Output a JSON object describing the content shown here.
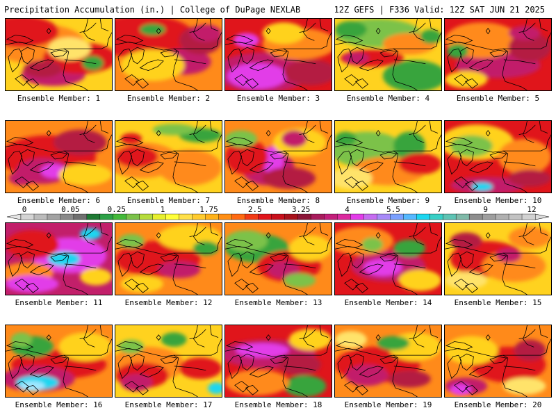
{
  "header": {
    "title_left": "Precipitation Accumulation (in.) | College of DuPage NEXLAB",
    "title_right": "12Z GEFS | F336 Valid: 12Z SAT JUN 21 2025"
  },
  "panels": [
    {
      "label": "Ensemble Member: 1",
      "base": "#ffd21f",
      "blobs": [
        [
          "#ff8a1a",
          0.3,
          0.35,
          0.45,
          0.28
        ],
        [
          "#e0151b",
          0.15,
          0.18,
          0.35,
          0.22
        ],
        [
          "#c21f6a",
          0.45,
          0.78,
          0.3,
          0.16
        ],
        [
          "#e0151b",
          0.7,
          0.55,
          0.35,
          0.22
        ],
        [
          "#39a43c",
          0.82,
          0.62,
          0.1,
          0.1
        ],
        [
          "#ffe36b",
          0.6,
          0.42,
          0.2,
          0.16
        ],
        [
          "#b41a42",
          0.35,
          0.7,
          0.18,
          0.12
        ]
      ]
    },
    {
      "label": "Ensemble Member: 2",
      "base": "#ff8a1a",
      "blobs": [
        [
          "#e0151b",
          0.25,
          0.25,
          0.5,
          0.3
        ],
        [
          "#c21f6a",
          0.65,
          0.6,
          0.25,
          0.18
        ],
        [
          "#b41a42",
          0.8,
          0.3,
          0.2,
          0.2
        ],
        [
          "#ffd21f",
          0.35,
          0.65,
          0.3,
          0.22
        ],
        [
          "#39a43c",
          0.35,
          0.15,
          0.12,
          0.08
        ],
        [
          "#c21f6a",
          0.85,
          0.2,
          0.15,
          0.12
        ]
      ]
    },
    {
      "label": "Ensemble Member: 3",
      "base": "#e0151b",
      "blobs": [
        [
          "#c21f6a",
          0.35,
          0.75,
          0.45,
          0.28
        ],
        [
          "#e23ce8",
          0.3,
          0.8,
          0.28,
          0.18
        ],
        [
          "#ff8a1a",
          0.7,
          0.35,
          0.35,
          0.22
        ],
        [
          "#b41a42",
          0.8,
          0.75,
          0.25,
          0.18
        ],
        [
          "#ffd21f",
          0.55,
          0.2,
          0.2,
          0.15
        ],
        [
          "#e23ce8",
          0.2,
          0.3,
          0.12,
          0.1
        ]
      ]
    },
    {
      "label": "Ensemble Member: 4",
      "base": "#ffd21f",
      "blobs": [
        [
          "#39a43c",
          0.75,
          0.8,
          0.3,
          0.22
        ],
        [
          "#7bc24a",
          0.4,
          0.2,
          0.4,
          0.2
        ],
        [
          "#39a43c",
          0.15,
          0.15,
          0.15,
          0.12
        ],
        [
          "#e0151b",
          0.35,
          0.55,
          0.3,
          0.12
        ],
        [
          "#ff8a1a",
          0.7,
          0.35,
          0.25,
          0.15
        ],
        [
          "#c21f6a",
          0.2,
          0.55,
          0.12,
          0.08
        ],
        [
          "#39a43c",
          0.9,
          0.25,
          0.1,
          0.1
        ]
      ]
    },
    {
      "label": "Ensemble Member: 5",
      "base": "#e0151b",
      "blobs": [
        [
          "#c21f6a",
          0.5,
          0.65,
          0.4,
          0.18
        ],
        [
          "#ff8a1a",
          0.35,
          0.3,
          0.35,
          0.25
        ],
        [
          "#b41a42",
          0.8,
          0.4,
          0.2,
          0.2
        ],
        [
          "#ffd21f",
          0.2,
          0.85,
          0.2,
          0.12
        ],
        [
          "#39a43c",
          0.12,
          0.45,
          0.1,
          0.1
        ],
        [
          "#c21f6a",
          0.75,
          0.2,
          0.15,
          0.1
        ]
      ]
    },
    {
      "label": "Ensemble Member: 6",
      "base": "#ff8a1a",
      "blobs": [
        [
          "#e0151b",
          0.4,
          0.5,
          0.45,
          0.3
        ],
        [
          "#c21f6a",
          0.35,
          0.7,
          0.25,
          0.18
        ],
        [
          "#e23ce8",
          0.45,
          0.7,
          0.12,
          0.1
        ],
        [
          "#b41a42",
          0.7,
          0.3,
          0.25,
          0.18
        ],
        [
          "#ffd21f",
          0.75,
          0.75,
          0.25,
          0.15
        ],
        [
          "#c21f6a",
          0.15,
          0.8,
          0.12,
          0.1
        ]
      ]
    },
    {
      "label": "Ensemble Member: 7",
      "base": "#ffd21f",
      "blobs": [
        [
          "#ff8a1a",
          0.25,
          0.55,
          0.35,
          0.25
        ],
        [
          "#e0151b",
          0.2,
          0.5,
          0.2,
          0.15
        ],
        [
          "#ff8a1a",
          0.7,
          0.65,
          0.3,
          0.25
        ],
        [
          "#39a43c",
          0.8,
          0.2,
          0.2,
          0.1
        ],
        [
          "#7bc24a",
          0.55,
          0.12,
          0.2,
          0.08
        ],
        [
          "#e0151b",
          0.15,
          0.25,
          0.1,
          0.08
        ]
      ]
    },
    {
      "label": "Ensemble Member: 8",
      "base": "#ff8a1a",
      "blobs": [
        [
          "#c21f6a",
          0.4,
          0.65,
          0.25,
          0.25
        ],
        [
          "#e23ce8",
          0.45,
          0.55,
          0.1,
          0.2
        ],
        [
          "#e0151b",
          0.2,
          0.5,
          0.2,
          0.25
        ],
        [
          "#7bc24a",
          0.15,
          0.25,
          0.15,
          0.12
        ],
        [
          "#ffd21f",
          0.7,
          0.3,
          0.25,
          0.2
        ],
        [
          "#b41a42",
          0.6,
          0.8,
          0.25,
          0.15
        ],
        [
          "#c21f6a",
          0.65,
          0.25,
          0.12,
          0.12
        ]
      ]
    },
    {
      "label": "Ensemble Member: 9",
      "base": "#ffd21f",
      "blobs": [
        [
          "#7bc24a",
          0.3,
          0.4,
          0.35,
          0.25
        ],
        [
          "#39a43c",
          0.7,
          0.35,
          0.15,
          0.2
        ],
        [
          "#ff8a1a",
          0.5,
          0.7,
          0.35,
          0.2
        ],
        [
          "#e0151b",
          0.8,
          0.6,
          0.2,
          0.15
        ],
        [
          "#ffe36b",
          0.15,
          0.8,
          0.2,
          0.15
        ],
        [
          "#39a43c",
          0.1,
          0.25,
          0.1,
          0.1
        ]
      ]
    },
    {
      "label": "Ensemble Member: 10",
      "base": "#e0151b",
      "blobs": [
        [
          "#ffd21f",
          0.3,
          0.3,
          0.35,
          0.25
        ],
        [
          "#7bc24a",
          0.25,
          0.35,
          0.2,
          0.15
        ],
        [
          "#c21f6a",
          0.4,
          0.9,
          0.35,
          0.12
        ],
        [
          "#1bd6f0",
          0.35,
          0.92,
          0.1,
          0.06
        ],
        [
          "#ff8a1a",
          0.75,
          0.5,
          0.25,
          0.25
        ],
        [
          "#b41a42",
          0.8,
          0.8,
          0.2,
          0.12
        ]
      ]
    },
    {
      "label": "Ensemble Member: 11",
      "base": "#c21f6a",
      "blobs": [
        [
          "#e23ce8",
          0.6,
          0.45,
          0.35,
          0.25
        ],
        [
          "#1bd6f0",
          0.55,
          0.5,
          0.15,
          0.1
        ],
        [
          "#1bd6f0",
          0.8,
          0.15,
          0.1,
          0.08
        ],
        [
          "#e0151b",
          0.25,
          0.3,
          0.25,
          0.2
        ],
        [
          "#ff8a1a",
          0.2,
          0.7,
          0.25,
          0.15
        ],
        [
          "#e23ce8",
          0.25,
          0.85,
          0.25,
          0.12
        ],
        [
          "#ffd21f",
          0.85,
          0.75,
          0.15,
          0.12
        ]
      ]
    },
    {
      "label": "Ensemble Member: 12",
      "base": "#ff8a1a",
      "blobs": [
        [
          "#e0151b",
          0.4,
          0.5,
          0.4,
          0.25
        ],
        [
          "#ffd21f",
          0.7,
          0.2,
          0.3,
          0.18
        ],
        [
          "#39a43c",
          0.85,
          0.35,
          0.12,
          0.1
        ],
        [
          "#7bc24a",
          0.15,
          0.25,
          0.12,
          0.1
        ],
        [
          "#c21f6a",
          0.6,
          0.65,
          0.2,
          0.12
        ],
        [
          "#ffd21f",
          0.25,
          0.85,
          0.2,
          0.12
        ]
      ]
    },
    {
      "label": "Ensemble Member: 13",
      "base": "#ff8a1a",
      "blobs": [
        [
          "#39a43c",
          0.3,
          0.35,
          0.3,
          0.2
        ],
        [
          "#7bc24a",
          0.2,
          0.25,
          0.2,
          0.15
        ],
        [
          "#e0151b",
          0.6,
          0.6,
          0.3,
          0.22
        ],
        [
          "#c21f6a",
          0.55,
          0.65,
          0.15,
          0.12
        ],
        [
          "#ffd21f",
          0.8,
          0.35,
          0.2,
          0.18
        ],
        [
          "#7bc24a",
          0.7,
          0.8,
          0.15,
          0.1
        ]
      ]
    },
    {
      "label": "Ensemble Member: 14",
      "base": "#e0151b",
      "blobs": [
        [
          "#c21f6a",
          0.5,
          0.6,
          0.35,
          0.22
        ],
        [
          "#e23ce8",
          0.45,
          0.62,
          0.18,
          0.12
        ],
        [
          "#ff8a1a",
          0.25,
          0.25,
          0.3,
          0.2
        ],
        [
          "#39a43c",
          0.7,
          0.35,
          0.15,
          0.12
        ],
        [
          "#ffd21f",
          0.8,
          0.8,
          0.2,
          0.15
        ],
        [
          "#7bc24a",
          0.35,
          0.3,
          0.1,
          0.1
        ]
      ]
    },
    {
      "label": "Ensemble Member: 15",
      "base": "#ffd21f",
      "blobs": [
        [
          "#e0151b",
          0.4,
          0.5,
          0.35,
          0.25
        ],
        [
          "#ff8a1a",
          0.65,
          0.6,
          0.3,
          0.22
        ],
        [
          "#c21f6a",
          0.6,
          0.45,
          0.12,
          0.1
        ],
        [
          "#b41a42",
          0.2,
          0.25,
          0.15,
          0.12
        ],
        [
          "#ff8a1a",
          0.8,
          0.2,
          0.2,
          0.15
        ],
        [
          "#ffe36b",
          0.2,
          0.8,
          0.2,
          0.12
        ]
      ]
    },
    {
      "label": "Ensemble Member: 16",
      "base": "#ff8a1a",
      "blobs": [
        [
          "#e0151b",
          0.5,
          0.55,
          0.45,
          0.2
        ],
        [
          "#c21f6a",
          0.3,
          0.75,
          0.35,
          0.18
        ],
        [
          "#1bd6f0",
          0.3,
          0.8,
          0.2,
          0.1
        ],
        [
          "#9fe7ff",
          0.25,
          0.85,
          0.12,
          0.07
        ],
        [
          "#39a43c",
          0.25,
          0.3,
          0.2,
          0.15
        ],
        [
          "#ffd21f",
          0.75,
          0.3,
          0.25,
          0.2
        ],
        [
          "#7bc24a",
          0.15,
          0.2,
          0.1,
          0.1
        ]
      ]
    },
    {
      "label": "Ensemble Member: 17",
      "base": "#ffd21f",
      "blobs": [
        [
          "#ff8a1a",
          0.3,
          0.55,
          0.35,
          0.25
        ],
        [
          "#e0151b",
          0.25,
          0.7,
          0.25,
          0.18
        ],
        [
          "#c21f6a",
          0.2,
          0.8,
          0.15,
          0.12
        ],
        [
          "#1bd6f0",
          0.95,
          0.88,
          0.08,
          0.08
        ],
        [
          "#7bc24a",
          0.15,
          0.3,
          0.12,
          0.1
        ],
        [
          "#e0151b",
          0.8,
          0.6,
          0.2,
          0.15
        ],
        [
          "#39a43c",
          0.55,
          0.2,
          0.12,
          0.1
        ]
      ]
    },
    {
      "label": "Ensemble Member: 18",
      "base": "#e0151b",
      "blobs": [
        [
          "#c21f6a",
          0.4,
          0.4,
          0.45,
          0.2
        ],
        [
          "#e23ce8",
          0.35,
          0.35,
          0.25,
          0.1
        ],
        [
          "#39a43c",
          0.75,
          0.85,
          0.2,
          0.15
        ],
        [
          "#ff8a1a",
          0.3,
          0.8,
          0.3,
          0.18
        ],
        [
          "#ffd21f",
          0.8,
          0.2,
          0.2,
          0.15
        ],
        [
          "#b41a42",
          0.7,
          0.55,
          0.2,
          0.15
        ]
      ]
    },
    {
      "label": "Ensemble Member: 19",
      "base": "#ff8a1a",
      "blobs": [
        [
          "#e0151b",
          0.4,
          0.55,
          0.4,
          0.25
        ],
        [
          "#c21f6a",
          0.3,
          0.7,
          0.2,
          0.15
        ],
        [
          "#ffd21f",
          0.75,
          0.3,
          0.25,
          0.2
        ],
        [
          "#39a43c",
          0.55,
          0.25,
          0.15,
          0.1
        ],
        [
          "#b41a42",
          0.7,
          0.75,
          0.2,
          0.12
        ],
        [
          "#ffe36b",
          0.15,
          0.2,
          0.15,
          0.12
        ]
      ]
    },
    {
      "label": "Ensemble Member: 20",
      "base": "#ff8a1a",
      "blobs": [
        [
          "#e0151b",
          0.6,
          0.55,
          0.35,
          0.25
        ],
        [
          "#ffd21f",
          0.25,
          0.35,
          0.25,
          0.2
        ],
        [
          "#c21f6a",
          0.2,
          0.85,
          0.2,
          0.12
        ],
        [
          "#e23ce8",
          0.15,
          0.9,
          0.1,
          0.08
        ],
        [
          "#b41a42",
          0.8,
          0.35,
          0.15,
          0.15
        ],
        [
          "#ffe36b",
          0.75,
          0.85,
          0.2,
          0.12
        ]
      ]
    }
  ],
  "colorbar": {
    "colors": [
      "#d4d4d4",
      "#bbbbbb",
      "#a2a2a2",
      "#898989",
      "#707070",
      "#1e7a34",
      "#2ca147",
      "#43b93a",
      "#7bc24a",
      "#b6dc3c",
      "#e7ef2e",
      "#ffff3a",
      "#ffe04a",
      "#ffcb2e",
      "#ffb21a",
      "#ff8e14",
      "#ff6a12",
      "#f23a14",
      "#e0151b",
      "#c8101c",
      "#a8121c",
      "#8c1638",
      "#a81c5c",
      "#c21f7a",
      "#db2a9e",
      "#e23ce8",
      "#c56cf0",
      "#a78af8",
      "#7aa0ff",
      "#56b8ff",
      "#1bd6f0",
      "#38cfc6",
      "#5ec4b4",
      "#7fb9a8",
      "#8d8d8d",
      "#9e9e9e",
      "#b0b0b0",
      "#c2c2c2",
      "#d2d2d2"
    ],
    "labels": [
      "0",
      "0.05",
      "0.25",
      "1",
      "1.75",
      "2.5",
      "3.25",
      "4",
      "5.5",
      "7",
      "9",
      "12"
    ]
  }
}
